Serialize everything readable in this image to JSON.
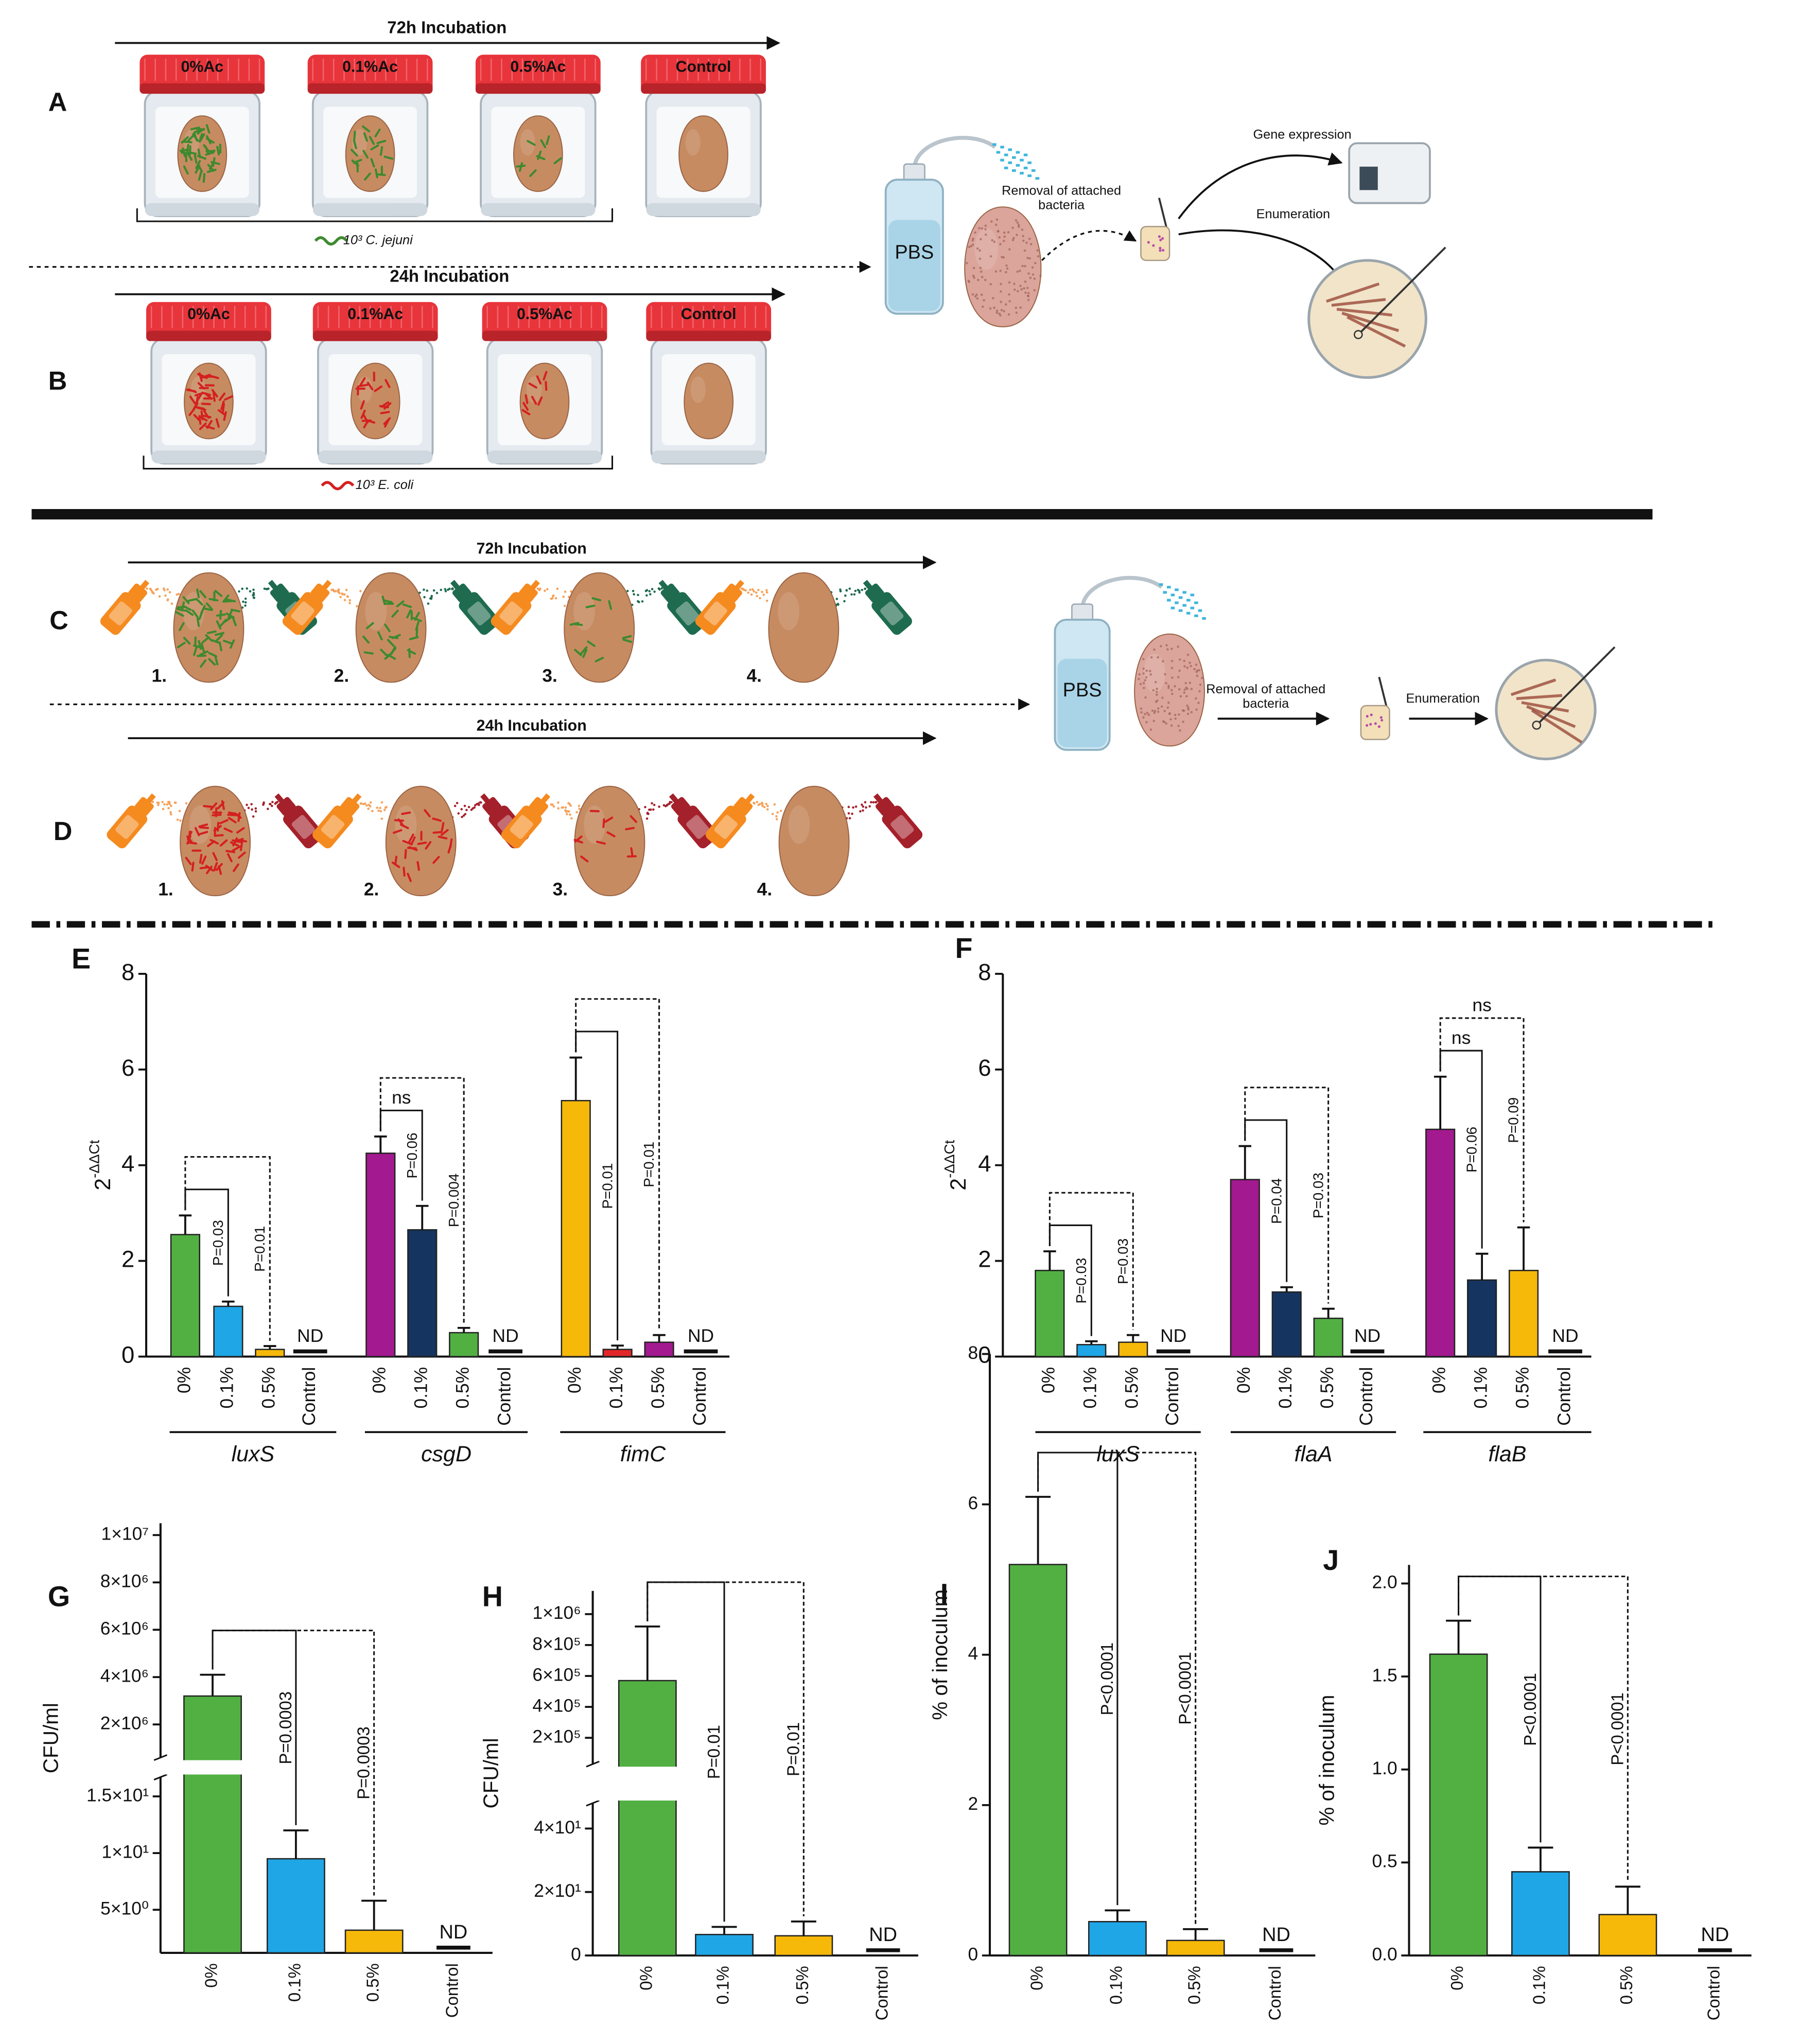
{
  "diagram": {
    "panel_labels": [
      "A",
      "B",
      "C",
      "D"
    ],
    "jar_rows": [
      {
        "incubation": "72h Incubation",
        "jars": [
          "0%Ac",
          "0.1%Ac",
          "0.5%Ac",
          "Control"
        ],
        "inoculum": "10³ C. jejuni"
      },
      {
        "incubation": "24h Incubation",
        "jars": [
          "0%Ac",
          "0.1%Ac",
          "0.5%Ac",
          "Control"
        ],
        "inoculum": "10³ E. coli"
      }
    ],
    "workflow_top": {
      "bottle": "PBS",
      "step": [
        "Removal of attached",
        "bacteria"
      ],
      "branches": [
        "Gene expression",
        "Enumeration"
      ]
    },
    "spray_rows": [
      {
        "incubation": "72h Incubation",
        "items": [
          "1.",
          "2.",
          "3.",
          "4."
        ]
      },
      {
        "incubation": "24h Incubation",
        "items": [
          "1.",
          "2.",
          "3.",
          "4."
        ]
      }
    ],
    "workflow_bottom": {
      "bottle": "PBS",
      "step": [
        "Removal of attached",
        "bacteria"
      ],
      "result": "Enumeration"
    }
  },
  "chart_data": [
    {
      "type": "bar",
      "label": "E",
      "ylabel": {
        "base": "2",
        "exponent": "-ΔΔCt"
      },
      "ylim": [
        0,
        8
      ],
      "yticks": [
        0,
        2,
        4,
        6,
        8
      ],
      "groups": [
        {
          "name": "luxS",
          "categories": [
            "0%",
            "0.1%",
            "0.5%",
            "Control"
          ],
          "values": [
            2.55,
            1.05,
            0.15,
            null
          ],
          "errors": [
            0.4,
            0.1,
            0.07,
            null
          ],
          "colors": [
            "#52b043",
            "#1fa6e6",
            "#f6b90a",
            null
          ],
          "value_labels": [
            null,
            null,
            null,
            "ND"
          ],
          "comparisons": [
            {
              "to": 1,
              "style": "solid",
              "label": "P=0.03"
            },
            {
              "to": 2,
              "style": "dashed",
              "label": "P=0.01"
            }
          ]
        },
        {
          "name": "csgD",
          "categories": [
            "0%",
            "0.1%",
            "0.5%",
            "Control"
          ],
          "values": [
            4.25,
            2.65,
            0.5,
            null
          ],
          "errors": [
            0.35,
            0.5,
            0.1,
            null
          ],
          "colors": [
            "#a3198f",
            "#15345f",
            "#52b043",
            null
          ],
          "value_labels": [
            null,
            null,
            null,
            "ND"
          ],
          "comparisons": [
            {
              "to": 1,
              "style": "solid",
              "label": "P=0.06",
              "top_label": "ns"
            },
            {
              "to": 2,
              "style": "dashed",
              "label": "P=0.004"
            }
          ]
        },
        {
          "name": "fimC",
          "categories": [
            "0%",
            "0.1%",
            "0.5%",
            "Control"
          ],
          "values": [
            5.35,
            0.15,
            0.3,
            null
          ],
          "errors": [
            0.9,
            0.08,
            0.15,
            null
          ],
          "colors": [
            "#f6b90a",
            "#e3262a",
            "#a3198f",
            null
          ],
          "value_labels": [
            null,
            null,
            null,
            "ND"
          ],
          "comparisons": [
            {
              "to": 1,
              "style": "solid",
              "label": "P=0.01"
            },
            {
              "to": 2,
              "style": "dashed",
              "label": "P=0.01"
            }
          ]
        }
      ]
    },
    {
      "type": "bar",
      "label": "F",
      "ylabel": {
        "base": "2",
        "exponent": "-ΔΔCt"
      },
      "ylim": [
        0,
        8
      ],
      "yticks": [
        0,
        2,
        4,
        6,
        8
      ],
      "groups": [
        {
          "name": "luxS",
          "categories": [
            "0%",
            "0.1%",
            "0.5%",
            "Control"
          ],
          "values": [
            1.8,
            0.25,
            0.3,
            null
          ],
          "errors": [
            0.4,
            0.07,
            0.15,
            null
          ],
          "colors": [
            "#52b043",
            "#1fa6e6",
            "#f6b90a",
            null
          ],
          "value_labels": [
            null,
            null,
            null,
            "ND"
          ],
          "comparisons": [
            {
              "to": 1,
              "style": "solid",
              "label": "P=0.03"
            },
            {
              "to": 2,
              "style": "dashed",
              "label": "P=0.03"
            }
          ]
        },
        {
          "name": "flaA",
          "categories": [
            "0%",
            "0.1%",
            "0.5%",
            "Control"
          ],
          "values": [
            3.7,
            1.35,
            0.8,
            null
          ],
          "errors": [
            0.7,
            0.1,
            0.2,
            null
          ],
          "colors": [
            "#a3198f",
            "#15345f",
            "#52b043",
            null
          ],
          "value_labels": [
            null,
            null,
            null,
            "ND"
          ],
          "comparisons": [
            {
              "to": 1,
              "style": "solid",
              "label": "P=0.04"
            },
            {
              "to": 2,
              "style": "dashed",
              "label": "P=0.03"
            }
          ]
        },
        {
          "name": "flaB",
          "categories": [
            "0%",
            "0.1%",
            "0.5%",
            "Control"
          ],
          "values": [
            4.75,
            1.6,
            1.8,
            null
          ],
          "errors": [
            1.1,
            0.55,
            0.9,
            null
          ],
          "colors": [
            "#a3198f",
            "#15345f",
            "#f6b90a",
            null
          ],
          "value_labels": [
            null,
            null,
            null,
            "ND"
          ],
          "comparisons": [
            {
              "to": 1,
              "style": "solid",
              "label": "P=0.06",
              "top_label": "ns"
            },
            {
              "to": 2,
              "style": "dashed",
              "label": "P=0.09",
              "top_label": "ns"
            }
          ]
        }
      ]
    },
    {
      "type": "bar",
      "label": "G",
      "ylabel": "CFU/ml",
      "segments": [
        {
          "ylim": [
            1.2,
            16.7
          ],
          "yticks": [
            {
              "value": 5,
              "label": "5×10⁰"
            },
            {
              "value": 10,
              "label": "1×10¹"
            },
            {
              "value": 15,
              "label": "1.5×10¹"
            }
          ]
        },
        {
          "ylim": [
            600000,
            10500000
          ],
          "yticks": [
            {
              "value": 2000000,
              "label": "2×10⁶"
            },
            {
              "value": 4000000,
              "label": "4×10⁶"
            },
            {
              "value": 6000000,
              "label": "6×10⁶"
            },
            {
              "value": 8000000,
              "label": "8×10⁶"
            },
            {
              "value": 10000000,
              "label": "1×10⁷"
            }
          ]
        }
      ],
      "categories": [
        "0%",
        "0.1%",
        "0.5%",
        "Control"
      ],
      "values": [
        3200000,
        9.5,
        3.2,
        null
      ],
      "errors": [
        900000,
        2.5,
        2.6,
        null
      ],
      "colors": [
        "#52b043",
        "#1fa6e6",
        "#f6b90a",
        null
      ],
      "value_labels": [
        null,
        null,
        null,
        "ND"
      ],
      "comparisons": [
        {
          "to": 1,
          "style": "solid",
          "label": "P=0.0003"
        },
        {
          "to": 2,
          "style": "dashed",
          "label": "P=0.0003"
        }
      ]
    },
    {
      "type": "bar",
      "label": "H",
      "ylabel": "CFU/ml",
      "segments": [
        {
          "ylim": [
            0,
            48
          ],
          "yticks": [
            0,
            {
              "value": 20,
              "label": "2×10¹"
            },
            {
              "value": 40,
              "label": "4×10¹"
            }
          ]
        },
        {
          "ylim": [
            30000,
            1150000
          ],
          "yticks": [
            {
              "value": 200000,
              "label": "2×10⁵"
            },
            {
              "value": 400000,
              "label": "4×10⁵"
            },
            {
              "value": 600000,
              "label": "6×10⁵"
            },
            {
              "value": 800000,
              "label": "8×10⁵"
            },
            {
              "value": 1000000,
              "label": "1×10⁶"
            }
          ]
        }
      ],
      "categories": [
        "0%",
        "0.1%",
        "0.5%",
        "Control"
      ],
      "values": [
        570000,
        6.6,
        6.2,
        null
      ],
      "errors": [
        350000,
        2.4,
        4.5,
        null
      ],
      "colors": [
        "#52b043",
        "#1fa6e6",
        "#f6b90a",
        null
      ],
      "value_labels": [
        null,
        null,
        null,
        "ND"
      ],
      "comparisons": [
        {
          "to": 1,
          "style": "solid",
          "label": "P=0.01"
        },
        {
          "to": 2,
          "style": "dashed",
          "label": "P=0.01"
        }
      ]
    },
    {
      "type": "bar",
      "label": "I",
      "ylabel": "% of inoculum",
      "ylim": [
        0,
        8
      ],
      "yticks": [
        0,
        2,
        4,
        6,
        8
      ],
      "categories": [
        "0%",
        "0.1%",
        "0.5%",
        "Control"
      ],
      "values": [
        5.2,
        0.45,
        0.2,
        null
      ],
      "errors": [
        0.9,
        0.15,
        0.15,
        null
      ],
      "colors": [
        "#52b043",
        "#1fa6e6",
        "#f6b90a",
        null
      ],
      "value_labels": [
        null,
        null,
        null,
        "ND"
      ],
      "comparisons": [
        {
          "to": 1,
          "style": "solid",
          "label": "P<0.0001"
        },
        {
          "to": 2,
          "style": "dashed",
          "label": "P<0.0001"
        }
      ]
    },
    {
      "type": "bar",
      "label": "J",
      "ylabel": "% of inoculum",
      "ylim": [
        0,
        2.1
      ],
      "yticks": [
        {
          "value": 0,
          "label": "0.0"
        },
        {
          "value": 0.5,
          "label": "0.5"
        },
        {
          "value": 1,
          "label": "1.0"
        },
        {
          "value": 1.5,
          "label": "1.5"
        },
        {
          "value": 2,
          "label": "2.0"
        }
      ],
      "categories": [
        "0%",
        "0.1%",
        "0.5%",
        "Control"
      ],
      "values": [
        1.62,
        0.45,
        0.22,
        null
      ],
      "errors": [
        0.18,
        0.13,
        0.15,
        null
      ],
      "colors": [
        "#52b043",
        "#1fa6e6",
        "#f6b90a",
        null
      ],
      "value_labels": [
        null,
        null,
        null,
        "ND"
      ],
      "comparisons": [
        {
          "to": 1,
          "style": "solid",
          "label": "P<0.0001"
        },
        {
          "to": 2,
          "style": "dashed",
          "label": "P<0.0001"
        }
      ]
    }
  ]
}
